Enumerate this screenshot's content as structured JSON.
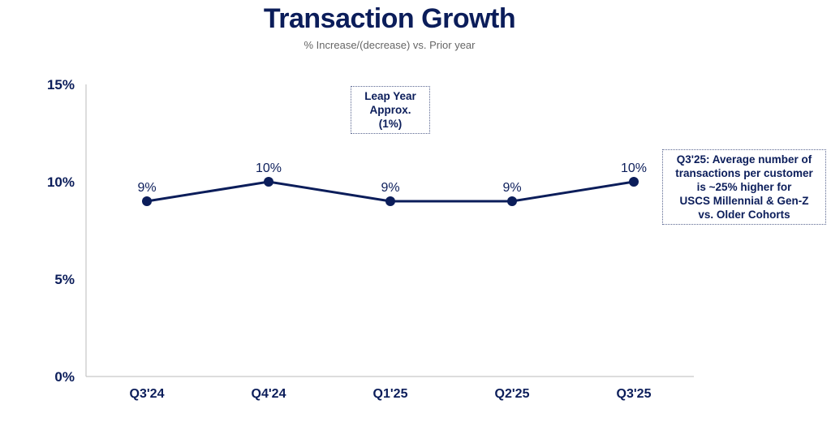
{
  "chart_data": {
    "type": "line",
    "title": "Transaction Growth",
    "subtitle": "% Increase/(decrease) vs. Prior year",
    "categories": [
      "Q3'24",
      "Q4'24",
      "Q1'25",
      "Q2'25",
      "Q3'25"
    ],
    "series": [
      {
        "name": "Transaction Growth",
        "values": [
          9,
          10,
          9,
          9,
          10
        ],
        "labels": [
          "9%",
          "10%",
          "9%",
          "9%",
          "10%"
        ]
      }
    ],
    "yticks": [
      "0%",
      "5%",
      "10%",
      "15%"
    ],
    "ytick_values": [
      0,
      5,
      10,
      15
    ],
    "ylim": [
      0,
      15
    ],
    "grid": false,
    "color": "#0b1d5a",
    "annotations": [
      {
        "lines": [
          "Leap Year",
          "Approx.",
          "(1%)"
        ]
      },
      {
        "lines": [
          "Q3'25: Average number of",
          "transactions per customer",
          "is ~25% higher for",
          "USCS Millennial & Gen-Z",
          "vs. Older Cohorts"
        ]
      }
    ]
  }
}
